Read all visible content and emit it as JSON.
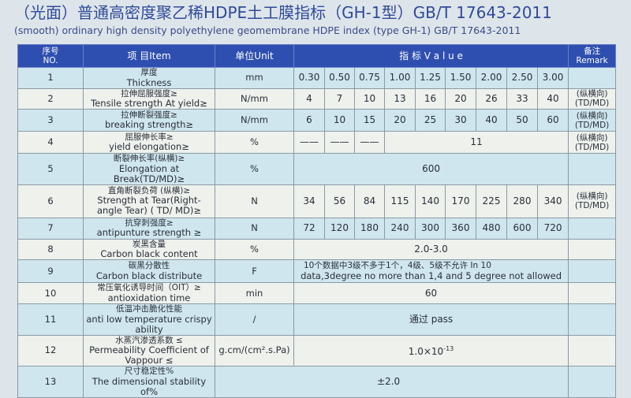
{
  "title": "（光面）普通高密度聚乙稀HDPE土工膜指标（GH-1型）GB/T 17643-2011",
  "subtitle": "(smooth) ordinary high density polyethylene geomembrane HDPE index (type GH-1) GB/T 17643-2011",
  "colors": {
    "header": "#2f4fb0",
    "row_odd": "#cfe6ee",
    "row_even": "#eef1ec"
  },
  "header": {
    "no_zh": "序号",
    "no_en": "NO.",
    "item": "项 目Item",
    "unit": "单位Unit",
    "value": "指 标 V a l u e",
    "remark_zh": "备注",
    "remark_en": "Remark"
  },
  "rows": [
    {
      "no": "1",
      "zh": "厚度",
      "en": "Thickness",
      "unit": "mm",
      "values": [
        "0.30",
        "0.50",
        "0.75",
        "1.00",
        "1.25",
        "1.50",
        "2.00",
        "2.50",
        "3.00"
      ],
      "remark": ""
    },
    {
      "no": "2",
      "zh": "拉伸屈服强度≥",
      "en": "Tensile strength At yield≥",
      "unit": "N/mm",
      "values": [
        "4",
        "7",
        "10",
        "13",
        "16",
        "20",
        "26",
        "33",
        "40"
      ],
      "remark": "(纵横向)(TD/MD)"
    },
    {
      "no": "3",
      "zh": "拉伸断裂强度≥",
      "en": "breaking strength≥",
      "unit": "N/mm",
      "values": [
        "6",
        "10",
        "15",
        "20",
        "25",
        "30",
        "40",
        "50",
        "60"
      ],
      "remark": "(纵横向)(TD/MD)"
    },
    {
      "no": "4",
      "zh": "屈服伸长率≥",
      "en": "yield elongation≥",
      "unit": "%",
      "values": [
        "——",
        "——",
        "——"
      ],
      "span_value": "11",
      "remark": "(纵横向)(TD/MD)"
    },
    {
      "no": "5",
      "zh": "断裂伸长率(纵横)≥",
      "en": "Elongation at Break(TD/MD)≥",
      "unit": "%",
      "span_value": "600",
      "remark": ""
    },
    {
      "no": "6",
      "zh": "直角断裂负荷 (纵横)≥",
      "en": "Strength at Tear(Right-angle Tear) ( TD/ MD)≥",
      "unit": "N",
      "values": [
        "34",
        "56",
        "84",
        "115",
        "140",
        "170",
        "225",
        "280",
        "340"
      ],
      "remark": "(纵横向)(TD/MD)"
    },
    {
      "no": "7",
      "zh": "抗穿刺强度≥",
      "en": "antipunture strength ≥",
      "unit": "N",
      "values": [
        "72",
        "120",
        "180",
        "240",
        "300",
        "360",
        "480",
        "600",
        "720"
      ],
      "remark": ""
    },
    {
      "no": "8",
      "zh": "炭黑含量",
      "en": "Carbon black content",
      "unit": "%",
      "span_value": "2.0-3.0",
      "remark": ""
    },
    {
      "no": "9",
      "zh": "碳黑分散性",
      "en": "Carbon black distribute",
      "unit": "F",
      "span_value_zh": "10个数据中3级不多于1个，4级、5级不允许 In 10",
      "span_value": "data,3degree no more than 1,4 and 5 degree not allowed",
      "remark": ""
    },
    {
      "no": "10",
      "zh": "常压氧化诱导时间（OIT）≥",
      "en": "antioxidation time",
      "unit": "min",
      "span_value": "60",
      "remark": ""
    },
    {
      "no": "11",
      "zh": "低温冲击脆化性能",
      "en": "anti low temperature crispy ability",
      "unit": "/",
      "span_value": "通过 pass",
      "remark": ""
    },
    {
      "no": "12",
      "zh": "水蒸汽渗透系数 ≤",
      "en": "Permeability Coefficient of Vappour ≤",
      "unit": "g.cm/(cm².s.Pa)",
      "span_value": "1.0×10",
      "span_exp": "-13",
      "remark": ""
    },
    {
      "no": "13",
      "zh": "尺寸稳定性%",
      "en": "The dimensional stability of%",
      "span_value": "±2.0",
      "remark": ""
    }
  ]
}
